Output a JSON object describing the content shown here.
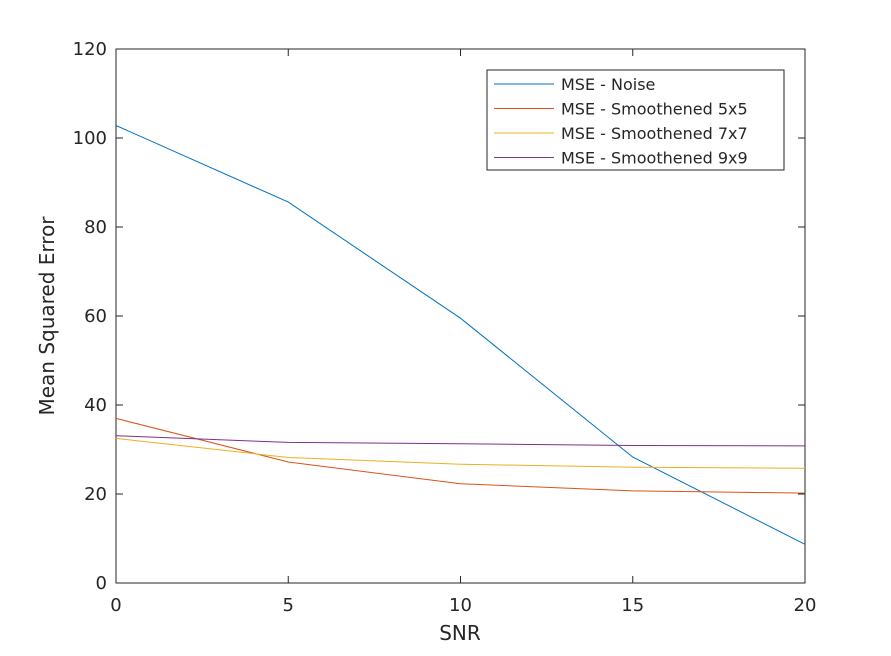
{
  "chart_data": {
    "type": "line",
    "title": "",
    "xlabel": "SNR",
    "ylabel": "Mean Squared Error",
    "xlim": [
      0,
      20
    ],
    "ylim": [
      0,
      120
    ],
    "xticks": [
      0,
      5,
      10,
      15,
      20
    ],
    "yticks": [
      0,
      20,
      40,
      60,
      80,
      100,
      120
    ],
    "grid": false,
    "legend_position": "top-right",
    "x": [
      0,
      5,
      10,
      15,
      20
    ],
    "series": [
      {
        "name": "MSE - Noise",
        "color": "#0072BD",
        "values": [
          102.8,
          85.6,
          59.5,
          28.3,
          8.7
        ]
      },
      {
        "name": "MSE - Smoothened 5x5",
        "color": "#D95319",
        "values": [
          37.0,
          27.2,
          22.3,
          20.7,
          20.2
        ]
      },
      {
        "name": "MSE - Smoothened 7x7",
        "color": "#EDB120",
        "values": [
          32.5,
          28.2,
          26.7,
          26.0,
          25.8
        ]
      },
      {
        "name": "MSE - Smoothened 9x9",
        "color": "#7E2F8E",
        "values": [
          33.1,
          31.6,
          31.3,
          30.9,
          30.8
        ]
      }
    ]
  }
}
